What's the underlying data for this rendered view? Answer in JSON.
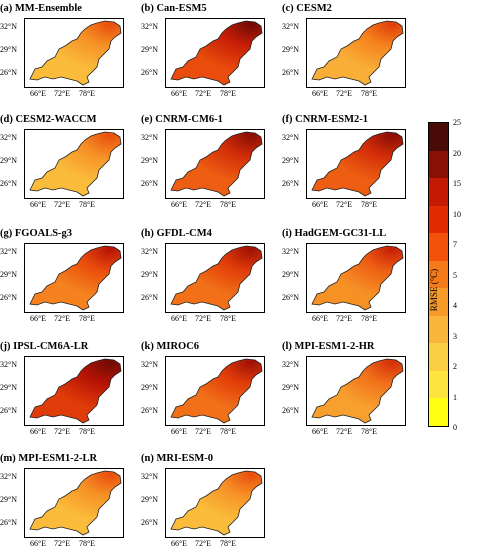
{
  "panels": [
    {
      "title": "(a) MM-Ensemble",
      "level": 0.3
    },
    {
      "title": "(b) Can-ESM5",
      "level": 0.65
    },
    {
      "title": "(c) CESM2",
      "level": 0.35
    },
    {
      "title": "(d) CESM2-WACCM",
      "level": 0.3
    },
    {
      "title": "(e) CNRM-CM6-1",
      "level": 0.6
    },
    {
      "title": "(f) CNRM-ESM2-1",
      "level": 0.6
    },
    {
      "title": "(g) FGOALS-g3",
      "level": 0.5
    },
    {
      "title": "(h) GFDL-CM4",
      "level": 0.55
    },
    {
      "title": "(i) HadGEM-GC31-LL",
      "level": 0.45
    },
    {
      "title": "(j) IPSL-CM6A-LR",
      "level": 0.7
    },
    {
      "title": "(k) MIROC6",
      "level": 0.55
    },
    {
      "title": "(l) MPI-ESM1-2-HR",
      "level": 0.4
    },
    {
      "title": "(m) MPI-ESM1-2-LR",
      "level": 0.3
    },
    {
      "title": "(n) MRI-ESM-0",
      "level": 0.3
    }
  ],
  "axes": {
    "ylabels": [
      "32°N",
      "29°N",
      "26°N"
    ],
    "xlabels": [
      "66°E",
      "72°E",
      "78°E"
    ]
  },
  "colorbar": {
    "title": "RMSE (°C)",
    "ticks": [
      "25",
      "20",
      "15",
      "10",
      "7",
      "5",
      "4",
      "3",
      "2",
      "1",
      "0"
    ],
    "colors": [
      "#4a0a05",
      "#8b1004",
      "#c41a02",
      "#e22c00",
      "#f2520a",
      "#f47a1a",
      "#f79a2a",
      "#f9b43a",
      "#fbce44",
      "#fde43e",
      "#ffff14"
    ]
  }
}
